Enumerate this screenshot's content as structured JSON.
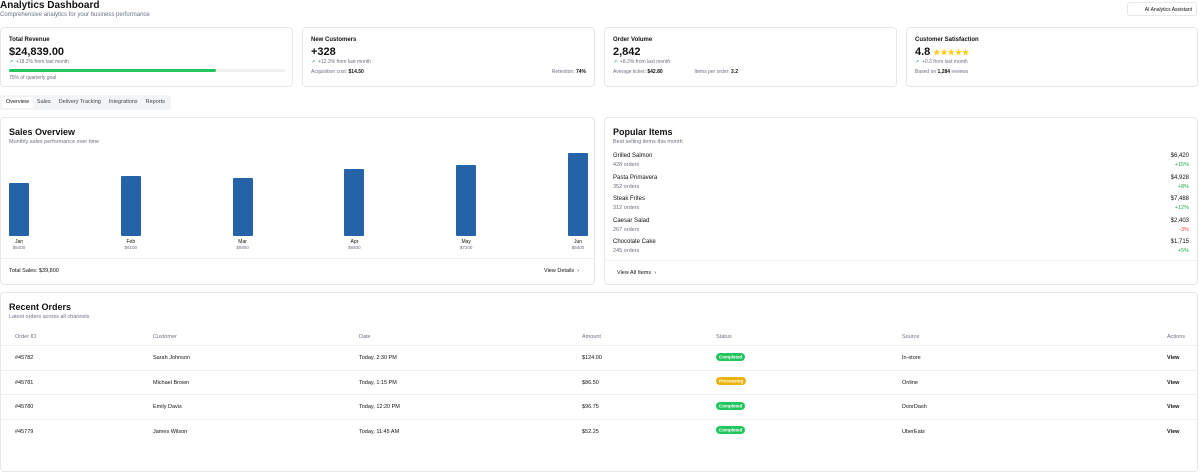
{
  "header": {
    "title": "Analytics Dashboard",
    "subtitle": "Comprehensive analytics for your business performance",
    "assistant_button": "AI Analytics Assistant"
  },
  "kpis": [
    {
      "label": "Total Revenue",
      "value": "$24,839.00",
      "change": "+18.2% from last month",
      "progress": 75,
      "progress_label": "75% of quarterly goal"
    },
    {
      "label": "New Customers",
      "value": "+328",
      "change": "+12.3% from last month",
      "left_key": "Acquisition cost:",
      "left_value": "$14.50",
      "right_key": "Retention:",
      "right_value": "74%"
    },
    {
      "label": "Order Volume",
      "value": "2,842",
      "change": "+8.3% from last month",
      "left_key": "Average ticket:",
      "left_value": "$42.80",
      "right_key": "Items per order:",
      "right_value": "3.2"
    },
    {
      "label": "Customer Satisfaction",
      "value": "4.8",
      "change": "+0.3 from last month",
      "left_key": "Based on",
      "left_value": "1,284",
      "left_suffix": "reviews"
    }
  ],
  "tabs": [
    "Overview",
    "Sales",
    "Delivery Tracking",
    "Integrations",
    "Reports"
  ],
  "sales": {
    "title": "Sales Overview",
    "subtitle": "Monthly sales performance over time",
    "total": "Total Sales: $39,800",
    "link": "View Details"
  },
  "chart_data": {
    "type": "bar",
    "categories": [
      "Jan",
      "Feb",
      "Mar",
      "Apr",
      "May",
      "Jun"
    ],
    "values": [
      5400,
      6100,
      5900,
      6800,
      7200,
      8400
    ],
    "value_labels": [
      "$5400",
      "$6100",
      "$5900",
      "$6800",
      "$7200",
      "$8400"
    ],
    "color": "#2563a8"
  },
  "popular": {
    "title": "Popular Items",
    "subtitle": "Best selling items this month",
    "link": "View All Items",
    "items": [
      {
        "name": "Grilled Salmon",
        "orders": "428 orders",
        "revenue": "$6,420",
        "change": "+15%",
        "color": "#22a35a"
      },
      {
        "name": "Pasta Primavera",
        "orders": "352 orders",
        "revenue": "$4,928",
        "change": "+8%",
        "color": "#22a35a"
      },
      {
        "name": "Steak Frites",
        "orders": "312 orders",
        "revenue": "$7,488",
        "change": "+12%",
        "color": "#22a35a"
      },
      {
        "name": "Caesar Salad",
        "orders": "267 orders",
        "revenue": "$2,403",
        "change": "-3%",
        "color": "#e5484d"
      },
      {
        "name": "Chocolate Cake",
        "orders": "245 orders",
        "revenue": "$1,715",
        "change": "+5%",
        "color": "#22a35a"
      }
    ]
  },
  "orders": {
    "title": "Recent Orders",
    "subtitle": "Latest orders across all channels",
    "columns": [
      "Order ID",
      "Customer",
      "Date",
      "Amount",
      "Status",
      "Source",
      "Actions"
    ],
    "rows": [
      {
        "id": "#45782",
        "customer": "Sarah Johnson",
        "date": "Today, 2:30 PM",
        "amount": "$124.00",
        "status": "Completed",
        "status_color": "#22c55e",
        "source": "In-store",
        "action": "View"
      },
      {
        "id": "#45781",
        "customer": "Michael Brown",
        "date": "Today, 1:15 PM",
        "amount": "$86.50",
        "status": "Processing",
        "status_color": "#eab308",
        "source": "Online",
        "action": "View"
      },
      {
        "id": "#45780",
        "customer": "Emily Davis",
        "date": "Today, 12:20 PM",
        "amount": "$96.75",
        "status": "Completed",
        "status_color": "#22c55e",
        "source": "DoorDash",
        "action": "View"
      },
      {
        "id": "#45779",
        "customer": "James Wilson",
        "date": "Today, 11:45 AM",
        "amount": "$52.25",
        "status": "Completed",
        "status_color": "#22c55e",
        "source": "UberEats",
        "action": "View"
      }
    ]
  }
}
